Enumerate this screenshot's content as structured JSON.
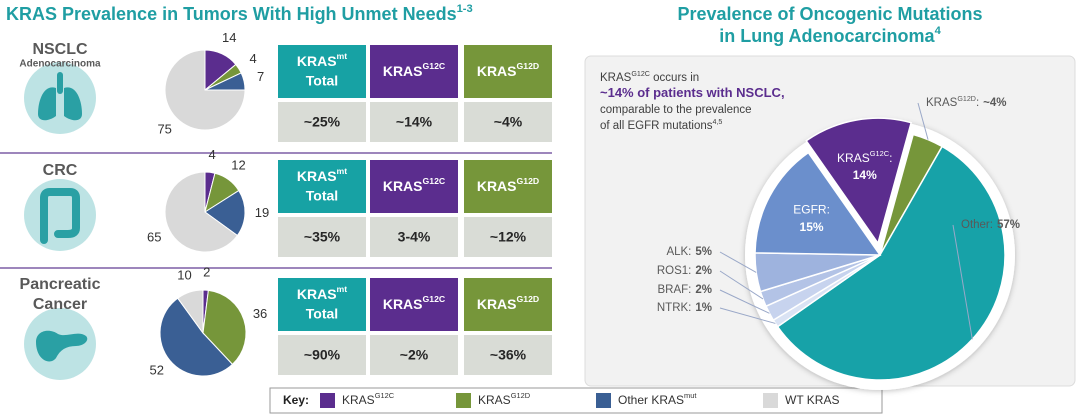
{
  "title": {
    "text": "KRAS Prevalence in Tumors With High Unmet Needs",
    "sup": "1-3"
  },
  "table_headers": [
    {
      "text": "KRAS",
      "sup": "mt",
      "line2": "Total"
    },
    {
      "text": "KRAS",
      "sup": "G12C"
    },
    {
      "text": "KRAS",
      "sup": "G12D"
    }
  ],
  "rows": [
    {
      "label": [
        "NSCLC"
      ],
      "sublabel": "Adenocarcinoma",
      "cells": [
        "~25%",
        "~14%",
        "~4%"
      ]
    },
    {
      "label": [
        "CRC"
      ],
      "cells": [
        "~35%",
        "3-4%",
        "~12%"
      ]
    },
    {
      "label": [
        "Pancreatic",
        "Cancer"
      ],
      "cells": [
        "~90%",
        "~2%",
        "~36%"
      ]
    }
  ],
  "key": {
    "label": "Key:",
    "items": [
      {
        "name": "KRAS",
        "sup": "G12C",
        "color": "#5b2d8e"
      },
      {
        "name": "KRAS",
        "sup": "G12D",
        "color": "#76963a"
      },
      {
        "name": "Other KRAS",
        "sup": "mut",
        "color": "#3a5f94"
      },
      {
        "name": "WT KRAS",
        "color": "#d9d9d9"
      }
    ]
  },
  "chart_data": [
    {
      "type": "pie",
      "values": [
        14,
        4,
        7,
        75
      ],
      "colors": [
        "#5b2d8e",
        "#76963a",
        "#3a5f94",
        "#d9d9d9"
      ]
    },
    {
      "type": "pie",
      "values": [
        4,
        12,
        19,
        65
      ],
      "colors": [
        "#5b2d8e",
        "#76963a",
        "#3a5f94",
        "#d9d9d9"
      ]
    },
    {
      "type": "pie",
      "values": [
        2,
        36,
        52,
        10
      ],
      "colors": [
        "#5b2d8e",
        "#76963a",
        "#3a5f94",
        "#d9d9d9"
      ]
    },
    {
      "type": "pie",
      "title": [
        "Prevalence of Oncogenic Mutations",
        "in Lung Adenocarcinoma"
      ],
      "title_sup": "4",
      "categories": [
        {
          "name": "KRAS",
          "sup": "G12C",
          "after": ":"
        },
        {
          "name": "KRAS",
          "sup": "G12D",
          "after": ":"
        },
        {
          "name": "Other:"
        },
        {
          "name": "NTRK:"
        },
        {
          "name": "BRAF:"
        },
        {
          "name": "ROS1:"
        },
        {
          "name": "ALK:"
        },
        {
          "name": "EGFR:"
        }
      ],
      "values": [
        14,
        4,
        57,
        1,
        2,
        2,
        5,
        15
      ],
      "value_labels": [
        "14%",
        "~4%",
        "57%",
        "1%",
        "2%",
        "2%",
        "5%",
        "15%"
      ],
      "colors": [
        "#5b2d8e",
        "#76963a",
        "#17a2a8",
        "#dae3f4",
        "#c7d3ee",
        "#b3c3e6",
        "#9eb3de",
        "#6b8fcc"
      ],
      "annotation": [
        [
          {
            "text": "KRAS"
          },
          {
            "text": "G12C",
            "style": "sup"
          },
          {
            "text": " occurs in"
          }
        ],
        [
          {
            "text": "~14% of patients with NSCLC,",
            "style": "bold"
          }
        ],
        [
          {
            "text": "comparable to the prevalence"
          }
        ],
        [
          {
            "text": "of all EGFR mutations"
          },
          {
            "text": "4,5",
            "style": "sup"
          }
        ]
      ]
    }
  ]
}
